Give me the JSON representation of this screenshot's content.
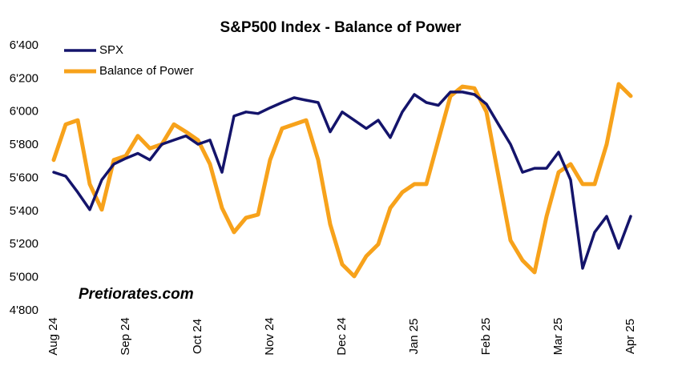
{
  "chart_data": {
    "type": "line",
    "title": "S&P500 Index - Balance of Power",
    "annotations": [
      "Pretiorates.com"
    ],
    "categories": [
      "Aug 24",
      null,
      null,
      null,
      null,
      null,
      "Sep 24",
      null,
      null,
      null,
      null,
      null,
      "Oct 24",
      null,
      null,
      null,
      null,
      null,
      "Nov 24",
      null,
      null,
      null,
      null,
      null,
      "Dec 24",
      null,
      null,
      null,
      null,
      null,
      "Jan 25",
      null,
      null,
      null,
      null,
      null,
      "Feb 25",
      null,
      null,
      null,
      null,
      null,
      "Mar 25",
      null,
      null,
      null,
      null,
      null,
      "Apr 25"
    ],
    "series": [
      {
        "name": "SPX",
        "color": "#14146b",
        "values": [
          5636,
          5612,
          5515,
          5410,
          5590,
          5685,
          5720,
          5750,
          5710,
          5805,
          5830,
          5855,
          5805,
          5830,
          5636,
          5975,
          6000,
          5990,
          6025,
          6057,
          6086,
          6071,
          6057,
          5880,
          6000,
          5950,
          5900,
          5950,
          5845,
          6000,
          6105,
          6057,
          6040,
          6120,
          6120,
          6105,
          6047,
          5925,
          5805,
          5636,
          5660,
          5660,
          5757,
          5590,
          5056,
          5274,
          5370,
          5177,
          5370
        ]
      },
      {
        "name": "Balance of Power",
        "color": "#f7a21b",
        "values": [
          5710,
          5925,
          5950,
          5564,
          5410,
          5710,
          5735,
          5855,
          5780,
          5805,
          5925,
          5880,
          5830,
          5685,
          5420,
          5274,
          5361,
          5380,
          5710,
          5900,
          5925,
          5950,
          5710,
          5322,
          5080,
          5008,
          5129,
          5201,
          5420,
          5515,
          5564,
          5564,
          5830,
          6095,
          6153,
          6143,
          6000,
          5612,
          5225,
          5104,
          5032,
          5370,
          5636,
          5685,
          5564,
          5564,
          5805,
          6168,
          6096
        ]
      }
    ],
    "ylim": [
      4800,
      6400
    ],
    "yticks": [
      {
        "value": 4800,
        "label": "4'800"
      },
      {
        "value": 5000,
        "label": "5'000"
      },
      {
        "value": 5200,
        "label": "5'200"
      },
      {
        "value": 5400,
        "label": "5'400"
      },
      {
        "value": 5600,
        "label": "5'600"
      },
      {
        "value": 5800,
        "label": "5'800"
      },
      {
        "value": 6000,
        "label": "6'000"
      },
      {
        "value": 6200,
        "label": "6'200"
      },
      {
        "value": 6400,
        "label": "6'400"
      }
    ],
    "grid": false,
    "legend": "top-left"
  }
}
